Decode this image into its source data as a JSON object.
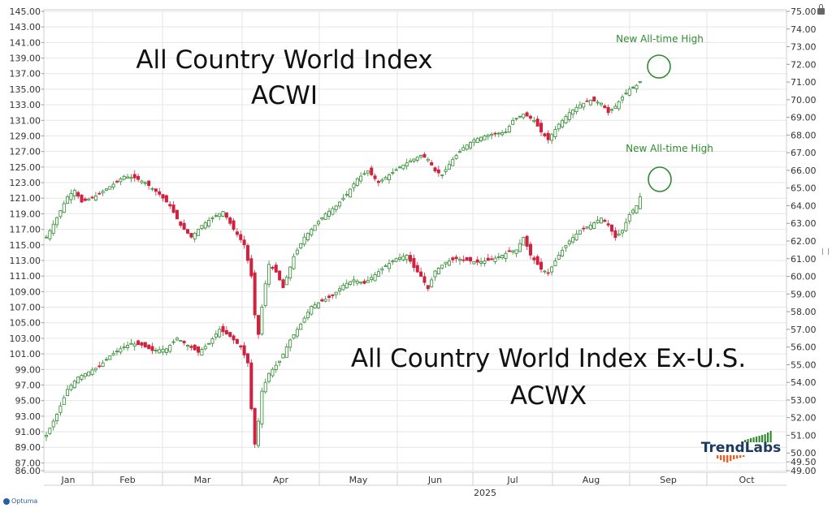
{
  "chart_data": {
    "type": "candlestick",
    "left_axis": {
      "min": 86,
      "max": 145,
      "ticks": [
        "145.00",
        "143.00",
        "141.00",
        "139.00",
        "137.00",
        "135.00",
        "133.00",
        "131.00",
        "129.00",
        "127.00",
        "125.00",
        "123.00",
        "121.00",
        "119.00",
        "117.00",
        "115.00",
        "113.00",
        "111.00",
        "109.00",
        "107.00",
        "105.00",
        "103.00",
        "101.00",
        "99.00",
        "97.00",
        "95.00",
        "93.00",
        "91.00",
        "89.00",
        "87.00",
        "86.00"
      ]
    },
    "right_axis": {
      "min": 49,
      "max": 75,
      "ticks": [
        "75.00",
        "74.00",
        "73.00",
        "72.00",
        "71.00",
        "70.00",
        "69.00",
        "68.00",
        "67.00",
        "66.00",
        "65.00",
        "64.00",
        "63.00",
        "62.00",
        "61.00",
        "60.00",
        "59.00",
        "58.00",
        "57.00",
        "56.00",
        "55.00",
        "54.00",
        "53.00",
        "52.00",
        "51.00",
        "50.00",
        "49.50",
        "49.00"
      ]
    },
    "x_axis": {
      "months": [
        "Jan",
        "Feb",
        "Mar",
        "Apr",
        "May",
        "Jun",
        "Jul",
        "Aug",
        "Sep",
        "Oct"
      ],
      "year": "2025"
    },
    "series": [
      {
        "name": "All Country World Index",
        "ticker": "ACWI",
        "axis": "left",
        "close_anchors": [
          [
            0,
            116.0
          ],
          [
            3,
            118.5
          ],
          [
            6,
            121.2
          ],
          [
            8,
            122.0
          ],
          [
            10,
            120.5
          ],
          [
            14,
            121.3
          ],
          [
            19,
            122.8
          ],
          [
            22,
            123.8
          ],
          [
            25,
            123.6
          ],
          [
            28,
            123.0
          ],
          [
            32,
            121.5
          ],
          [
            35,
            120.0
          ],
          [
            38,
            117.5
          ],
          [
            41,
            116.0
          ],
          [
            44,
            117.5
          ],
          [
            47,
            118.5
          ],
          [
            50,
            119.3
          ],
          [
            53,
            117.0
          ],
          [
            56,
            115.0
          ],
          [
            58,
            111.0
          ],
          [
            59,
            106.0
          ],
          [
            60,
            103.5
          ],
          [
            61,
            107.0
          ],
          [
            62,
            110.0
          ],
          [
            63,
            112.5
          ],
          [
            65,
            111.5
          ],
          [
            67,
            109.5
          ],
          [
            70,
            113.5
          ],
          [
            73,
            116.0
          ],
          [
            76,
            117.5
          ],
          [
            79,
            119.0
          ],
          [
            82,
            120.0
          ],
          [
            85,
            121.5
          ],
          [
            88,
            123.5
          ],
          [
            91,
            124.5
          ],
          [
            94,
            123.0
          ],
          [
            97,
            124.0
          ],
          [
            100,
            125.0
          ],
          [
            103,
            125.8
          ],
          [
            106,
            126.5
          ],
          [
            108,
            126.0
          ],
          [
            110,
            124.5
          ],
          [
            112,
            124.0
          ],
          [
            115,
            126.0
          ],
          [
            118,
            127.5
          ],
          [
            121,
            128.5
          ],
          [
            124,
            129.0
          ],
          [
            127,
            129.3
          ],
          [
            130,
            129.5
          ],
          [
            132,
            131.0
          ],
          [
            135,
            131.8
          ],
          [
            138,
            131.0
          ],
          [
            140,
            129.5
          ],
          [
            142,
            128.5
          ],
          [
            145,
            130.5
          ],
          [
            148,
            132.0
          ],
          [
            151,
            133.0
          ],
          [
            154,
            133.6
          ],
          [
            157,
            133.2
          ],
          [
            159,
            132.0
          ],
          [
            161,
            132.8
          ],
          [
            163,
            134.0
          ],
          [
            165,
            135.0
          ],
          [
            167,
            135.5
          ],
          [
            168,
            136.0
          ]
        ]
      },
      {
        "name": "All Country World Index Ex-U.S.",
        "ticker": "ACWX",
        "axis": "right",
        "close_anchors": [
          [
            0,
            51.0
          ],
          [
            3,
            52.2
          ],
          [
            6,
            53.6
          ],
          [
            9,
            54.3
          ],
          [
            12,
            54.6
          ],
          [
            15,
            54.9
          ],
          [
            18,
            55.5
          ],
          [
            21,
            55.9
          ],
          [
            24,
            56.2
          ],
          [
            27,
            56.1
          ],
          [
            30,
            55.8
          ],
          [
            34,
            55.9
          ],
          [
            37,
            56.5
          ],
          [
            40,
            56.1
          ],
          [
            43,
            55.7
          ],
          [
            46,
            56.2
          ],
          [
            49,
            57.0
          ],
          [
            52,
            56.6
          ],
          [
            55,
            56.0
          ],
          [
            57,
            55.1
          ],
          [
            58,
            52.5
          ],
          [
            59,
            50.5
          ],
          [
            60,
            51.8
          ],
          [
            61,
            53.5
          ],
          [
            63,
            54.5
          ],
          [
            66,
            55.2
          ],
          [
            69,
            56.4
          ],
          [
            72,
            57.3
          ],
          [
            75,
            58.3
          ],
          [
            78,
            58.6
          ],
          [
            81,
            58.9
          ],
          [
            84,
            59.5
          ],
          [
            87,
            59.8
          ],
          [
            90,
            59.6
          ],
          [
            93,
            60.1
          ],
          [
            96,
            60.6
          ],
          [
            99,
            61.0
          ],
          [
            102,
            61.2
          ],
          [
            104,
            60.5
          ],
          [
            106,
            60.0
          ],
          [
            108,
            59.3
          ],
          [
            110,
            60.3
          ],
          [
            113,
            60.8
          ],
          [
            116,
            61.0
          ],
          [
            119,
            60.9
          ],
          [
            122,
            60.8
          ],
          [
            125,
            60.9
          ],
          [
            128,
            61.1
          ],
          [
            131,
            61.4
          ],
          [
            133,
            61.5
          ],
          [
            135,
            62.2
          ],
          [
            137,
            61.2
          ],
          [
            140,
            60.4
          ],
          [
            142,
            60.2
          ],
          [
            145,
            61.2
          ],
          [
            148,
            62.0
          ],
          [
            151,
            62.6
          ],
          [
            154,
            62.9
          ],
          [
            157,
            63.3
          ],
          [
            159,
            62.9
          ],
          [
            161,
            62.2
          ],
          [
            163,
            62.6
          ],
          [
            165,
            63.5
          ],
          [
            167,
            64.0
          ],
          [
            168,
            64.5
          ]
        ]
      }
    ],
    "labels": [
      {
        "text": "All Country World Index"
      },
      {
        "text": "ACWI"
      },
      {
        "text": "All Country World Index Ex-U.S."
      },
      {
        "text": "ACWX"
      }
    ],
    "annotations": [
      "New All-time High",
      "New All-time High"
    ]
  },
  "branding": {
    "logo": "TrendLabs",
    "footer": "Optuma"
  },
  "colors": {
    "up": "#2e8b2e",
    "down": "#d0223e",
    "annotation": "#2e8b2e",
    "grid": "#e6e6e6"
  }
}
